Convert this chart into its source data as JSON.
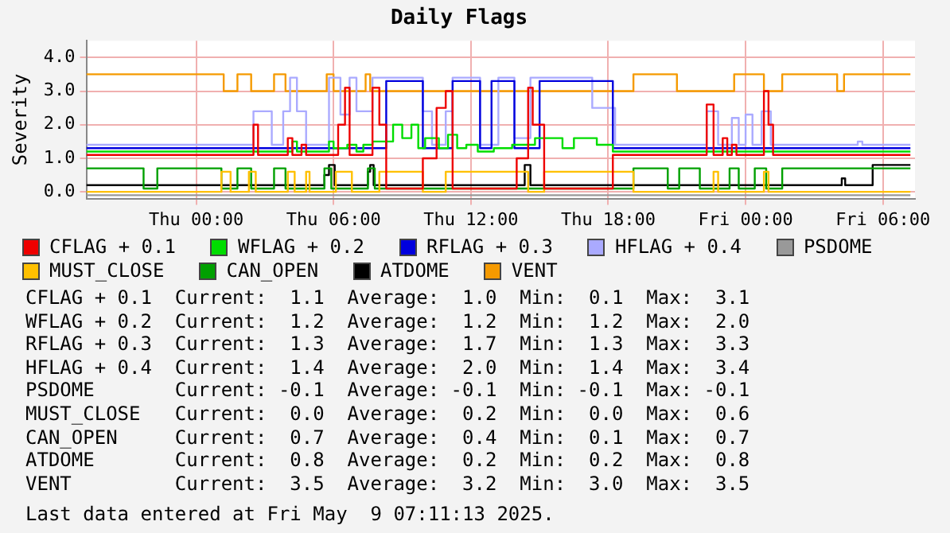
{
  "chart_data": {
    "type": "step",
    "title": "Daily Flags",
    "ylabel": "Severity",
    "xlim": [
      "2025-05-07T19:12",
      "2025-05-09T07:24"
    ],
    "xticks": [
      {
        "value": "2025-05-08T00:00",
        "label": "Thu 00:00"
      },
      {
        "value": "2025-05-08T06:00",
        "label": "Thu 06:00"
      },
      {
        "value": "2025-05-08T12:00",
        "label": "Thu 12:00"
      },
      {
        "value": "2025-05-08T18:00",
        "label": "Thu 18:00"
      },
      {
        "value": "2025-05-09T00:00",
        "label": "Fri 00:00"
      },
      {
        "value": "2025-05-09T06:00",
        "label": "Fri 06:00"
      }
    ],
    "ylim": [
      -0.2,
      4.5
    ],
    "yticks": [
      {
        "value": 0,
        "label": "0.0"
      },
      {
        "value": 1,
        "label": "1.0"
      },
      {
        "value": 2,
        "label": "2.0"
      },
      {
        "value": 3,
        "label": "3.0"
      },
      {
        "value": 4,
        "label": "4.0"
      }
    ],
    "grid": true,
    "legend": "bottom",
    "series": [
      {
        "name": "CFLAG + 0.1",
        "color": "#ee0000",
        "x": [
          "2025-05-07T19:12",
          "2025-05-08T02:30",
          "2025-05-08T02:42",
          "2025-05-08T04:00",
          "2025-05-08T04:12",
          "2025-05-08T04:36",
          "2025-05-08T04:48",
          "2025-05-08T06:12",
          "2025-05-08T06:30",
          "2025-05-08T06:42",
          "2025-05-08T07:42",
          "2025-05-08T08:00",
          "2025-05-08T08:18",
          "2025-05-08T09:54",
          "2025-05-08T10:30",
          "2025-05-08T10:54",
          "2025-05-08T11:12",
          "2025-05-08T14:00",
          "2025-05-08T14:30",
          "2025-05-08T14:42",
          "2025-05-08T15:12",
          "2025-05-08T18:12",
          "2025-05-08T22:18",
          "2025-05-08T22:36",
          "2025-05-08T23:00",
          "2025-05-08T23:12",
          "2025-05-08T23:24",
          "2025-05-08T23:36",
          "2025-05-09T00:48",
          "2025-05-09T01:00",
          "2025-05-09T01:12",
          "2025-05-09T07:12"
        ],
        "values": [
          1.1,
          2.0,
          1.1,
          1.6,
          1.1,
          1.4,
          1.1,
          2.0,
          3.1,
          1.1,
          3.1,
          2.0,
          0.1,
          1.0,
          2.5,
          3.0,
          0.1,
          1.0,
          3.1,
          2.0,
          0.1,
          1.1,
          2.6,
          1.1,
          1.6,
          1.1,
          1.4,
          1.1,
          3.0,
          2.0,
          1.1,
          1.1
        ]
      },
      {
        "name": "WFLAG + 0.2",
        "color": "#00dd00",
        "x": [
          "2025-05-07T19:12",
          "2025-05-08T04:12",
          "2025-05-08T04:24",
          "2025-05-08T05:48",
          "2025-05-08T06:00",
          "2025-05-08T06:36",
          "2025-05-08T07:00",
          "2025-05-08T07:18",
          "2025-05-08T07:42",
          "2025-05-08T08:36",
          "2025-05-08T09:00",
          "2025-05-08T09:24",
          "2025-05-08T09:42",
          "2025-05-08T10:00",
          "2025-05-08T10:36",
          "2025-05-08T11:00",
          "2025-05-08T11:24",
          "2025-05-08T11:48",
          "2025-05-08T12:18",
          "2025-05-08T13:00",
          "2025-05-08T13:48",
          "2025-05-08T14:48",
          "2025-05-08T16:00",
          "2025-05-08T16:30",
          "2025-05-08T17:30",
          "2025-05-08T18:12",
          "2025-05-09T07:12"
        ],
        "values": [
          1.2,
          1.5,
          1.2,
          1.5,
          1.3,
          1.4,
          1.2,
          1.4,
          1.5,
          2.0,
          1.6,
          2.0,
          1.3,
          1.6,
          1.3,
          1.7,
          1.3,
          1.4,
          1.2,
          1.3,
          1.4,
          1.6,
          1.3,
          1.6,
          1.4,
          1.2,
          1.2
        ]
      },
      {
        "name": "RFLAG + 0.3",
        "color": "#0000dd",
        "x": [
          "2025-05-07T19:12",
          "2025-05-08T08:18",
          "2025-05-08T09:54",
          "2025-05-08T11:12",
          "2025-05-08T12:24",
          "2025-05-08T12:54",
          "2025-05-08T13:54",
          "2025-05-08T15:00",
          "2025-05-08T18:12",
          "2025-05-09T07:12"
        ],
        "values": [
          1.3,
          3.3,
          1.3,
          3.3,
          1.3,
          3.3,
          1.3,
          3.3,
          1.3,
          1.3
        ]
      },
      {
        "name": "HFLAG + 0.4",
        "color": "#aaaaff",
        "x": [
          "2025-05-07T19:12",
          "2025-05-08T02:30",
          "2025-05-08T03:18",
          "2025-05-08T03:48",
          "2025-05-08T04:06",
          "2025-05-08T04:24",
          "2025-05-08T04:48",
          "2025-05-08T05:48",
          "2025-05-08T06:18",
          "2025-05-08T06:42",
          "2025-05-08T07:00",
          "2025-05-08T07:42",
          "2025-05-08T09:54",
          "2025-05-08T10:18",
          "2025-05-08T10:54",
          "2025-05-08T11:12",
          "2025-05-08T12:24",
          "2025-05-08T13:12",
          "2025-05-08T13:54",
          "2025-05-08T14:36",
          "2025-05-08T17:18",
          "2025-05-08T18:18",
          "2025-05-08T22:18",
          "2025-05-08T22:48",
          "2025-05-08T23:24",
          "2025-05-08T23:42",
          "2025-05-09T00:00",
          "2025-05-09T00:18",
          "2025-05-09T00:42",
          "2025-05-09T01:06",
          "2025-05-09T04:54",
          "2025-05-09T05:06",
          "2025-05-09T07:12"
        ],
        "values": [
          1.4,
          2.4,
          1.4,
          2.4,
          3.4,
          2.4,
          1.4,
          3.4,
          2.3,
          3.4,
          2.4,
          3.4,
          2.4,
          1.4,
          2.4,
          3.4,
          1.4,
          3.4,
          1.6,
          3.4,
          2.5,
          1.4,
          2.4,
          1.4,
          2.2,
          1.4,
          2.3,
          1.4,
          2.4,
          1.4,
          1.5,
          1.4,
          1.4
        ]
      },
      {
        "name": "PSDOME",
        "color": "#999999",
        "x": [
          "2025-05-07T19:12",
          "2025-05-09T07:12"
        ],
        "values": [
          -0.1,
          -0.1
        ]
      },
      {
        "name": "MUST_CLOSE",
        "color": "#ffc000",
        "x": [
          "2025-05-07T19:12",
          "2025-05-08T01:06",
          "2025-05-08T01:30",
          "2025-05-08T02:18",
          "2025-05-08T02:36",
          "2025-05-08T04:00",
          "2025-05-08T04:18",
          "2025-05-08T04:48",
          "2025-05-08T04:57",
          "2025-05-08T06:06",
          "2025-05-08T06:48",
          "2025-05-08T08:00",
          "2025-05-08T09:54",
          "2025-05-08T10:54",
          "2025-05-08T14:30",
          "2025-05-08T15:12",
          "2025-05-08T19:06",
          "2025-05-08T22:36",
          "2025-05-08T22:48",
          "2025-05-09T00:48",
          "2025-05-09T01:00",
          "2025-05-09T07:12"
        ],
        "values": [
          0.0,
          0.6,
          0.0,
          0.6,
          0.0,
          0.6,
          0.0,
          0.6,
          0.0,
          0.6,
          0.0,
          0.6,
          0.0,
          0.6,
          0.0,
          0.6,
          0.0,
          0.6,
          0.0,
          0.6,
          0.0,
          0.0
        ]
      },
      {
        "name": "CAN_OPEN",
        "color": "#00a000",
        "x": [
          "2025-05-07T19:12",
          "2025-05-07T21:42",
          "2025-05-07T22:18",
          "2025-05-08T01:06",
          "2025-05-08T01:48",
          "2025-05-08T02:24",
          "2025-05-08T03:24",
          "2025-05-08T03:54",
          "2025-05-08T05:36",
          "2025-05-08T05:54",
          "2025-05-08T07:30",
          "2025-05-08T07:48",
          "2025-05-08T19:06",
          "2025-05-08T20:36",
          "2025-05-08T21:06",
          "2025-05-08T22:00",
          "2025-05-08T23:18",
          "2025-05-08T23:42",
          "2025-05-09T00:24",
          "2025-05-09T00:54",
          "2025-05-09T01:36",
          "2025-05-09T07:12"
        ],
        "values": [
          0.7,
          0.1,
          0.7,
          0.1,
          0.7,
          0.1,
          0.7,
          0.1,
          0.7,
          0.1,
          0.7,
          0.1,
          0.7,
          0.1,
          0.7,
          0.1,
          0.7,
          0.1,
          0.7,
          0.1,
          0.7,
          0.7
        ]
      },
      {
        "name": "ATDOME",
        "color": "#000000",
        "x": [
          "2025-05-07T19:12",
          "2025-05-08T05:36",
          "2025-05-08T05:48",
          "2025-05-08T06:03",
          "2025-05-08T07:30",
          "2025-05-08T07:36",
          "2025-05-08T07:45",
          "2025-05-08T14:21",
          "2025-05-08T14:36",
          "2025-05-09T04:12",
          "2025-05-09T04:21",
          "2025-05-09T05:33",
          "2025-05-09T07:12"
        ],
        "values": [
          0.2,
          0.5,
          0.8,
          0.2,
          0.6,
          0.8,
          0.2,
          0.8,
          0.2,
          0.4,
          0.2,
          0.8,
          0.8
        ]
      },
      {
        "name": "VENT",
        "color": "#f59a00",
        "x": [
          "2025-05-07T19:12",
          "2025-05-08T01:12",
          "2025-05-08T01:48",
          "2025-05-08T02:24",
          "2025-05-08T03:24",
          "2025-05-08T03:54",
          "2025-05-08T05:42",
          "2025-05-08T06:00",
          "2025-05-08T07:24",
          "2025-05-08T07:36",
          "2025-05-08T19:06",
          "2025-05-08T21:00",
          "2025-05-08T23:30",
          "2025-05-09T00:48",
          "2025-05-09T01:36",
          "2025-05-09T04:00",
          "2025-05-09T04:18",
          "2025-05-09T07:12"
        ],
        "values": [
          3.5,
          3.0,
          3.5,
          3.0,
          3.5,
          3.0,
          3.5,
          3.0,
          3.5,
          3.0,
          3.5,
          3.0,
          3.5,
          3.0,
          3.5,
          3.0,
          3.5,
          3.5
        ]
      }
    ],
    "annotations": [
      "CFLAG + 0.1  Current:  1.1  Average:  1.0  Min:  0.1  Max:  3.1",
      "WFLAG + 0.2  Current:  1.2  Average:  1.2  Min:  1.2  Max:  2.0",
      "RFLAG + 0.3  Current:  1.3  Average:  1.7  Min:  1.3  Max:  3.3",
      "HFLAG + 0.4  Current:  1.4  Average:  2.0  Min:  1.4  Max:  3.4",
      "PSDOME       Current: -0.1  Average: -0.1  Min: -0.1  Max: -0.1",
      "MUST_CLOSE   Current:  0.0  Average:  0.2  Min:  0.0  Max:  0.6",
      "CAN_OPEN     Current:  0.7  Average:  0.4  Min:  0.1  Max:  0.7",
      "ATDOME       Current:  0.8  Average:  0.2  Min:  0.2  Max:  0.8",
      "VENT         Current:  3.5  Average:  3.2  Min:  3.0  Max:  3.5",
      "Last data entered at Fri May  9 07:11:13 2025."
    ]
  }
}
